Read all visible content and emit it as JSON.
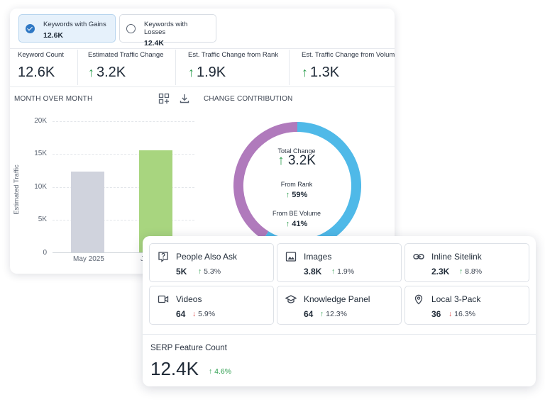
{
  "toggles": [
    {
      "label": "Keywords with Gains",
      "value": "12.6K",
      "selected": true
    },
    {
      "label": "Keywords with Losses",
      "value": "12.4K",
      "selected": false
    }
  ],
  "metrics": [
    {
      "label": "Keyword Count",
      "value": "12.6K",
      "arrow": ""
    },
    {
      "label": "Estimated Traffic Change",
      "value": "3.2K",
      "arrow": "↑"
    },
    {
      "label": "Est. Traffic Change from Rank",
      "value": "1.9K",
      "arrow": "↑"
    },
    {
      "label": "Est. Traffic Change from Volum",
      "value": "1.3K",
      "arrow": "↑"
    }
  ],
  "sections": {
    "month_over_month": "MONTH OVER MONTH",
    "change_contribution": "CHANGE CONTRIBUTION"
  },
  "icons": {
    "add_widget": "add-widget-icon",
    "download": "download-icon"
  },
  "chart_data": [
    {
      "type": "bar",
      "categories": [
        "May 2025",
        "J"
      ],
      "values": [
        12300,
        15600
      ],
      "ylabel": "Estimated Traffic",
      "ylim": [
        0,
        20000
      ],
      "yticks": [
        "0",
        "5K",
        "10K",
        "15K",
        "20K"
      ],
      "colors": [
        "#d0d3dd",
        "#a8d57f"
      ],
      "grid": true
    },
    {
      "type": "pie",
      "categories": [
        "From Rank",
        "From BE Volume"
      ],
      "values": [
        59,
        41
      ],
      "colors": [
        "#4fb9e8",
        "#b07abc"
      ],
      "center": {
        "total_label": "Total Change",
        "total_value": "3.2K",
        "rank_label": "From Rank",
        "rank_value": "59%",
        "volume_label": "From BE Volume",
        "volume_value": "41%"
      }
    }
  ],
  "features": [
    {
      "name": "People Also Ask",
      "value": "5K",
      "change": "5.3%",
      "direction": "up",
      "icon": "question-icon"
    },
    {
      "name": "Images",
      "value": "3.8K",
      "change": "1.9%",
      "direction": "up",
      "icon": "image-icon"
    },
    {
      "name": "Inline Sitelink",
      "value": "2.3K",
      "change": "8.8%",
      "direction": "up",
      "icon": "link-icon"
    },
    {
      "name": "Videos",
      "value": "64",
      "change": "5.9%",
      "direction": "down",
      "icon": "video-icon"
    },
    {
      "name": "Knowledge Panel",
      "value": "64",
      "change": "12.3%",
      "direction": "up",
      "icon": "graduation-cap-icon"
    },
    {
      "name": "Local 3-Pack",
      "value": "36",
      "change": "16.3%",
      "direction": "down",
      "icon": "map-pin-icon"
    }
  ],
  "serp": {
    "label": "SERP Feature Count",
    "value": "12.4K",
    "change": "4.6%",
    "arrow": "↑"
  },
  "arrows": {
    "up": "↑",
    "down": "↓"
  },
  "colors": {
    "accent": "#2f78c4",
    "up": "#2e9e4f",
    "down": "#e04646"
  }
}
